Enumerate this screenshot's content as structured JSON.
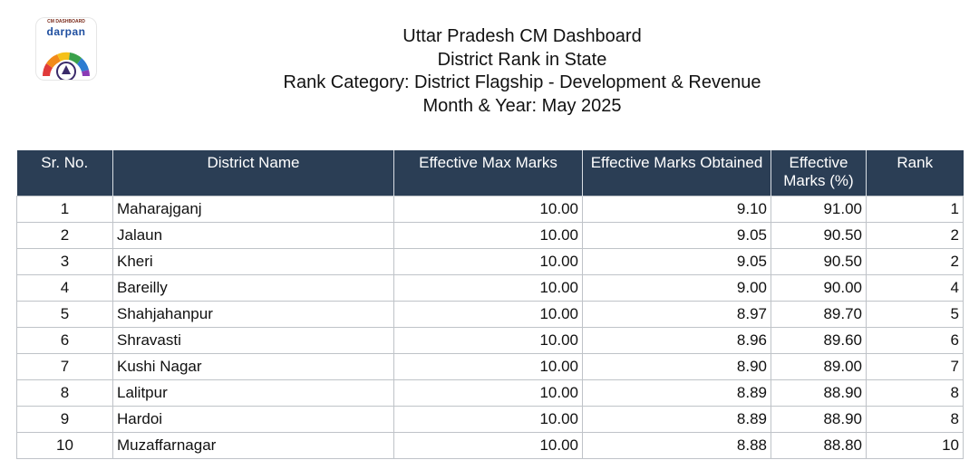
{
  "logo": {
    "top_text": "CM DASHBOARD",
    "word": "darpan"
  },
  "header": {
    "line1": "Uttar Pradesh CM Dashboard",
    "line2": "District Rank in State",
    "line3": "Rank Category: District Flagship - Development & Revenue",
    "line4": "Month & Year: May 2025"
  },
  "table": {
    "columns": [
      "Sr. No.",
      "District Name",
      "Effective Max Marks",
      "Effective Marks Obtained",
      "Effective Marks (%)",
      "Rank"
    ],
    "rows": [
      {
        "sr": "1",
        "district": "Maharajganj",
        "max": "10.00",
        "obtained": "9.10",
        "pct": "91.00",
        "rank": "1"
      },
      {
        "sr": "2",
        "district": "Jalaun",
        "max": "10.00",
        "obtained": "9.05",
        "pct": "90.50",
        "rank": "2"
      },
      {
        "sr": "3",
        "district": "Kheri",
        "max": "10.00",
        "obtained": "9.05",
        "pct": "90.50",
        "rank": "2"
      },
      {
        "sr": "4",
        "district": "Bareilly",
        "max": "10.00",
        "obtained": "9.00",
        "pct": "90.00",
        "rank": "4"
      },
      {
        "sr": "5",
        "district": "Shahjahanpur",
        "max": "10.00",
        "obtained": "8.97",
        "pct": "89.70",
        "rank": "5"
      },
      {
        "sr": "6",
        "district": "Shravasti",
        "max": "10.00",
        "obtained": "8.96",
        "pct": "89.60",
        "rank": "6"
      },
      {
        "sr": "7",
        "district": "Kushi Nagar",
        "max": "10.00",
        "obtained": "8.90",
        "pct": "89.00",
        "rank": "7"
      },
      {
        "sr": "8",
        "district": "Lalitpur",
        "max": "10.00",
        "obtained": "8.89",
        "pct": "88.90",
        "rank": "8"
      },
      {
        "sr": "9",
        "district": "Hardoi",
        "max": "10.00",
        "obtained": "8.89",
        "pct": "88.90",
        "rank": "8"
      },
      {
        "sr": "10",
        "district": "Muzaffarnagar",
        "max": "10.00",
        "obtained": "8.88",
        "pct": "88.80",
        "rank": "10"
      }
    ]
  },
  "colors": {
    "header_bg": "#2b3e55",
    "header_text": "#ffffff",
    "grid": "#bfc3c8"
  }
}
